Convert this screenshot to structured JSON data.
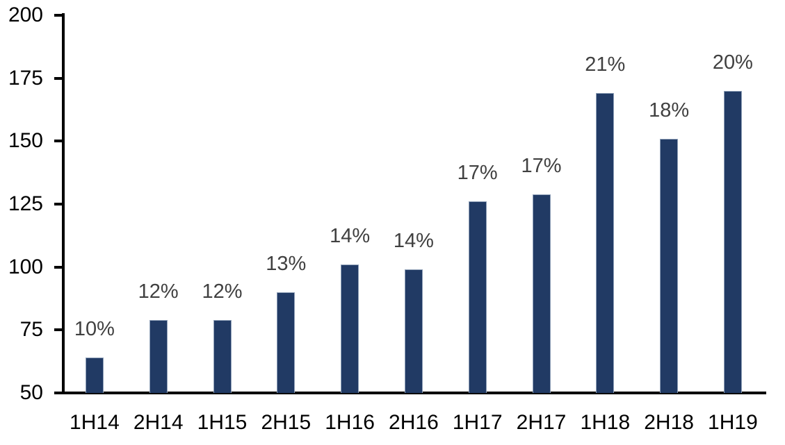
{
  "chart_data": {
    "type": "bar",
    "title": "",
    "xlabel": "",
    "ylabel": "",
    "categories": [
      "1H14",
      "2H14",
      "1H15",
      "2H15",
      "1H16",
      "2H16",
      "1H17",
      "2H17",
      "1H18",
      "2H18",
      "1H19"
    ],
    "values": [
      64,
      79,
      79,
      90,
      101,
      99,
      126,
      129,
      169,
      151,
      170
    ],
    "data_labels": [
      "10%",
      "12%",
      "12%",
      "13%",
      "14%",
      "14%",
      "17%",
      "17%",
      "21%",
      "18%",
      "20%"
    ],
    "ylim": [
      50,
      200
    ],
    "yticks": [
      50,
      75,
      100,
      125,
      150,
      175,
      200
    ],
    "grid": false,
    "legend": "none",
    "colors": {
      "bar_fill": "#213A64",
      "bar_border": "#8FA0B8",
      "data_label": "#404040",
      "axis": "#000000",
      "background": "#ffffff"
    }
  }
}
